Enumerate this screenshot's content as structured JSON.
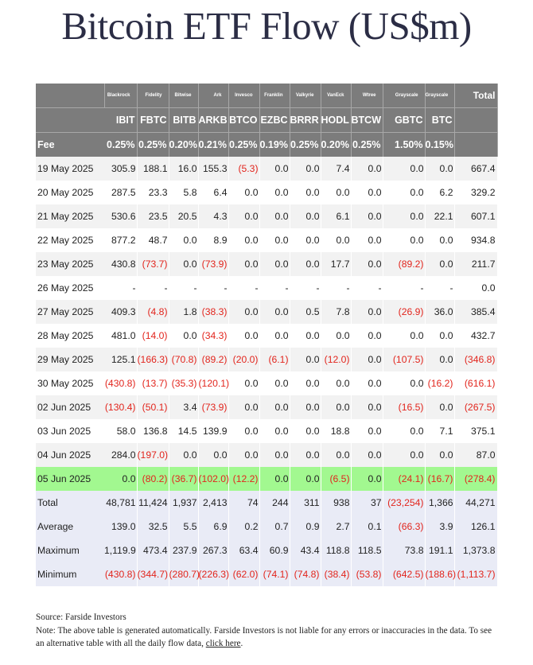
{
  "title": "Bitcoin ETF Flow (US$m)",
  "issuers": [
    "Blackrock",
    "Fidelity",
    "Bitwise",
    "Ark",
    "Invesco",
    "Franklin",
    "Valkyrie",
    "VanEck",
    "Wtree",
    "Grayscale",
    "Grayscale"
  ],
  "total_header": "Total",
  "tickers": [
    "IBIT",
    "FBTC",
    "BITB",
    "ARKB",
    "BTCO",
    "EZBC",
    "BRRR",
    "HODL",
    "BTCW",
    "GBTC",
    "BTC"
  ],
  "fee_label": "Fee",
  "fees": [
    "0.25%",
    "0.25%",
    "0.20%",
    "0.21%",
    "0.25%",
    "0.19%",
    "0.25%",
    "0.20%",
    "0.25%",
    "1.50%",
    "0.15%"
  ],
  "days": [
    {
      "date": "19 May 2025",
      "values": [
        "305.9",
        "188.1",
        "16.0",
        "155.3",
        "(5.3)",
        "0.0",
        "0.0",
        "7.4",
        "0.0",
        "0.0",
        "0.0"
      ],
      "total": "667.4"
    },
    {
      "date": "20 May 2025",
      "values": [
        "287.5",
        "23.3",
        "5.8",
        "6.4",
        "0.0",
        "0.0",
        "0.0",
        "0.0",
        "0.0",
        "0.0",
        "6.2"
      ],
      "total": "329.2"
    },
    {
      "date": "21 May 2025",
      "values": [
        "530.6",
        "23.5",
        "20.5",
        "4.3",
        "0.0",
        "0.0",
        "0.0",
        "6.1",
        "0.0",
        "0.0",
        "22.1"
      ],
      "total": "607.1"
    },
    {
      "date": "22 May 2025",
      "values": [
        "877.2",
        "48.7",
        "0.0",
        "8.9",
        "0.0",
        "0.0",
        "0.0",
        "0.0",
        "0.0",
        "0.0",
        "0.0"
      ],
      "total": "934.8"
    },
    {
      "date": "23 May 2025",
      "values": [
        "430.8",
        "(73.7)",
        "0.0",
        "(73.9)",
        "0.0",
        "0.0",
        "0.0",
        "17.7",
        "0.0",
        "(89.2)",
        "0.0"
      ],
      "total": "211.7"
    },
    {
      "date": "26 May 2025",
      "values": [
        "-",
        "-",
        "-",
        "-",
        "-",
        "-",
        "-",
        "-",
        "-",
        "-",
        "-"
      ],
      "total": "0.0"
    },
    {
      "date": "27 May 2025",
      "values": [
        "409.3",
        "(4.8)",
        "1.8",
        "(38.3)",
        "0.0",
        "0.0",
        "0.5",
        "7.8",
        "0.0",
        "(26.9)",
        "36.0"
      ],
      "total": "385.4"
    },
    {
      "date": "28 May 2025",
      "values": [
        "481.0",
        "(14.0)",
        "0.0",
        "(34.3)",
        "0.0",
        "0.0",
        "0.0",
        "0.0",
        "0.0",
        "0.0",
        "0.0"
      ],
      "total": "432.7"
    },
    {
      "date": "29 May 2025",
      "values": [
        "125.1",
        "(166.3)",
        "(70.8)",
        "(89.2)",
        "(20.0)",
        "(6.1)",
        "0.0",
        "(12.0)",
        "0.0",
        "(107.5)",
        "0.0"
      ],
      "total": "(346.8)"
    },
    {
      "date": "30 May 2025",
      "values": [
        "(430.8)",
        "(13.7)",
        "(35.3)",
        "(120.1)",
        "0.0",
        "0.0",
        "0.0",
        "0.0",
        "0.0",
        "0.0",
        "(16.2)"
      ],
      "total": "(616.1)"
    },
    {
      "date": "02 Jun 2025",
      "values": [
        "(130.4)",
        "(50.1)",
        "3.4",
        "(73.9)",
        "0.0",
        "0.0",
        "0.0",
        "0.0",
        "0.0",
        "(16.5)",
        "0.0"
      ],
      "total": "(267.5)"
    },
    {
      "date": "03 Jun 2025",
      "values": [
        "58.0",
        "136.8",
        "14.5",
        "139.9",
        "0.0",
        "0.0",
        "0.0",
        "18.8",
        "0.0",
        "0.0",
        "7.1"
      ],
      "total": "375.1"
    },
    {
      "date": "04 Jun 2025",
      "values": [
        "284.0",
        "(197.0)",
        "0.0",
        "0.0",
        "0.0",
        "0.0",
        "0.0",
        "0.0",
        "0.0",
        "0.0",
        "0.0"
      ],
      "total": "87.0"
    },
    {
      "date": "05 Jun 2025",
      "values": [
        "0.0",
        "(80.2)",
        "(36.7)",
        "(102.0)",
        "(12.2)",
        "0.0",
        "0.0",
        "(6.5)",
        "0.0",
        "(24.1)",
        "(16.7)"
      ],
      "total": "(278.4)"
    }
  ],
  "stats": [
    {
      "label": "Total",
      "values": [
        "48,781",
        "11,424",
        "1,937",
        "2,413",
        "74",
        "244",
        "311",
        "938",
        "37",
        "(23,254)",
        "1,366"
      ],
      "total": "44,271"
    },
    {
      "label": "Average",
      "values": [
        "139.0",
        "32.5",
        "5.5",
        "6.9",
        "0.2",
        "0.7",
        "0.9",
        "2.7",
        "0.1",
        "(66.3)",
        "3.9"
      ],
      "total": "126.1"
    },
    {
      "label": "Maximum",
      "values": [
        "1,119.9",
        "473.4",
        "237.9",
        "267.3",
        "63.4",
        "60.9",
        "43.4",
        "118.8",
        "118.5",
        "73.8",
        "191.1"
      ],
      "total": "1,373.8"
    },
    {
      "label": "Minimum",
      "values": [
        "(430.8)",
        "(344.7)",
        "(280.7)",
        "(226.3)",
        "(62.0)",
        "(74.1)",
        "(74.8)",
        "(38.4)",
        "(53.8)",
        "(642.5)",
        "(188.6)"
      ],
      "total": "(1,113.7)"
    }
  ],
  "footer": {
    "source": "Source: Farside Investors",
    "note": "Note: The above table is generated automatically. Farside Investors is not liable for any errors or inaccuracies in the data. To see an alternative table with all the daily flow data, ",
    "link_text": "click here",
    "after_link": "."
  },
  "colors": {
    "header_bg": "#7c7c7c",
    "row_alt": "#f2f2f2",
    "highlight": "#a2f890",
    "stats_bg": "#e9ebf6",
    "negative": "#e2251d",
    "title": "#2b2d45"
  }
}
